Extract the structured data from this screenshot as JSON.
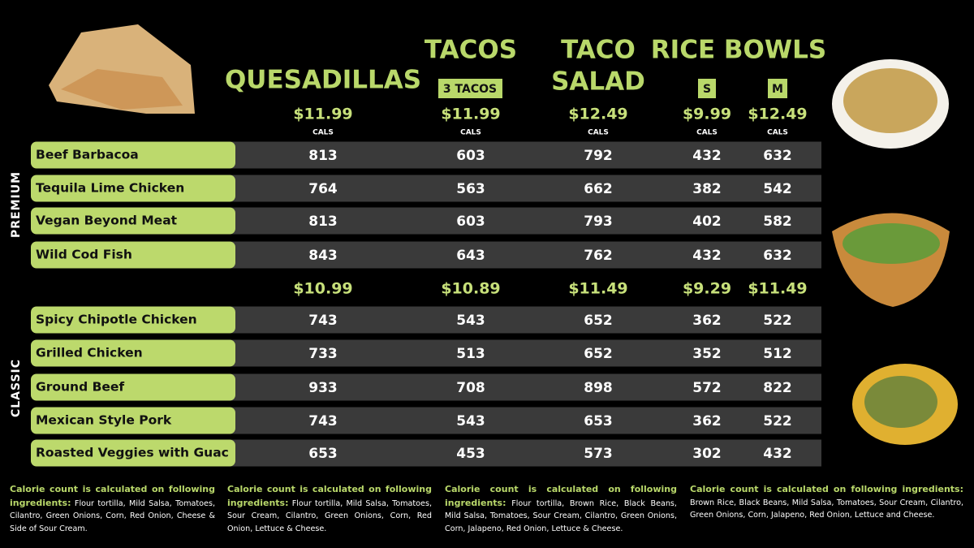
{
  "header": {
    "quesadillas": "QUESADILLAS",
    "tacos": "TACOS",
    "tacos_note": "3 TACOS",
    "taco_salad": [
      "TACO",
      "SALAD"
    ],
    "rice_bowls": "RICE BOWLS",
    "sizes": [
      "S",
      "M"
    ],
    "cals_label": "CALS"
  },
  "premium": {
    "label": "PREMIUM",
    "prices": [
      "$11.99",
      "$11.99",
      "$12.49",
      "$9.99",
      "$12.49"
    ],
    "rows": [
      {
        "name": "Beef Barbacoa",
        "cals": [
          813,
          603,
          792,
          432,
          632
        ]
      },
      {
        "name": "Tequila Lime Chicken",
        "cals": [
          764,
          563,
          662,
          382,
          542
        ]
      },
      {
        "name": "Vegan Beyond Meat",
        "cals": [
          813,
          603,
          793,
          402,
          582
        ]
      },
      {
        "name": "Wild Cod Fish",
        "cals": [
          843,
          643,
          762,
          432,
          632
        ]
      }
    ]
  },
  "classic": {
    "label": "CLASSIC",
    "prices": [
      "$10.99",
      "$10.89",
      "$11.49",
      "$9.29",
      "$11.49"
    ],
    "rows": [
      {
        "name": "Spicy Chipotle Chicken",
        "cals": [
          743,
          543,
          652,
          362,
          522
        ]
      },
      {
        "name": "Grilled Chicken",
        "cals": [
          733,
          513,
          652,
          352,
          512
        ]
      },
      {
        "name": "Ground Beef",
        "cals": [
          933,
          708,
          898,
          572,
          822
        ]
      },
      {
        "name": "Mexican Style Pork",
        "cals": [
          743,
          543,
          653,
          362,
          522
        ]
      },
      {
        "name": "Roasted Veggies with Guac",
        "cals": [
          653,
          453,
          573,
          302,
          432
        ]
      }
    ]
  },
  "footnotes": [
    {
      "lead": "Calorie count is calculated on following ingredients:",
      "text": "Flour tortilla, Mild Salsa, Tomatoes, Cilantro, Green Onions, Corn, Red Onion, Cheese & Side of Sour Cream."
    },
    {
      "lead": "Calorie count is calculated on following ingredients:",
      "text": "Flour tortilla, Mild Salsa, Tomatoes, Sour Cream, Cilantro, Green Onions, Corn, Red Onion, Lettuce & Cheese."
    },
    {
      "lead": "Calorie count is calculated on following ingredients:",
      "text": "Flour tortilla, Brown Rice, Black Beans, Mild Salsa, Tomatoes, Sour Cream, Cilantro, Green Onions, Corn, Jalapeno, Red Onion, Lettuce & Cheese."
    },
    {
      "lead": "Calorie count is calculated on following ingredients:",
      "text": "Brown Rice, Black Beans, Mild Salsa, Tomatoes, Sour Cream, Cilantro, Green Onions, Corn, Jalapeno, Red Onion, Lettuce and Cheese."
    }
  ]
}
